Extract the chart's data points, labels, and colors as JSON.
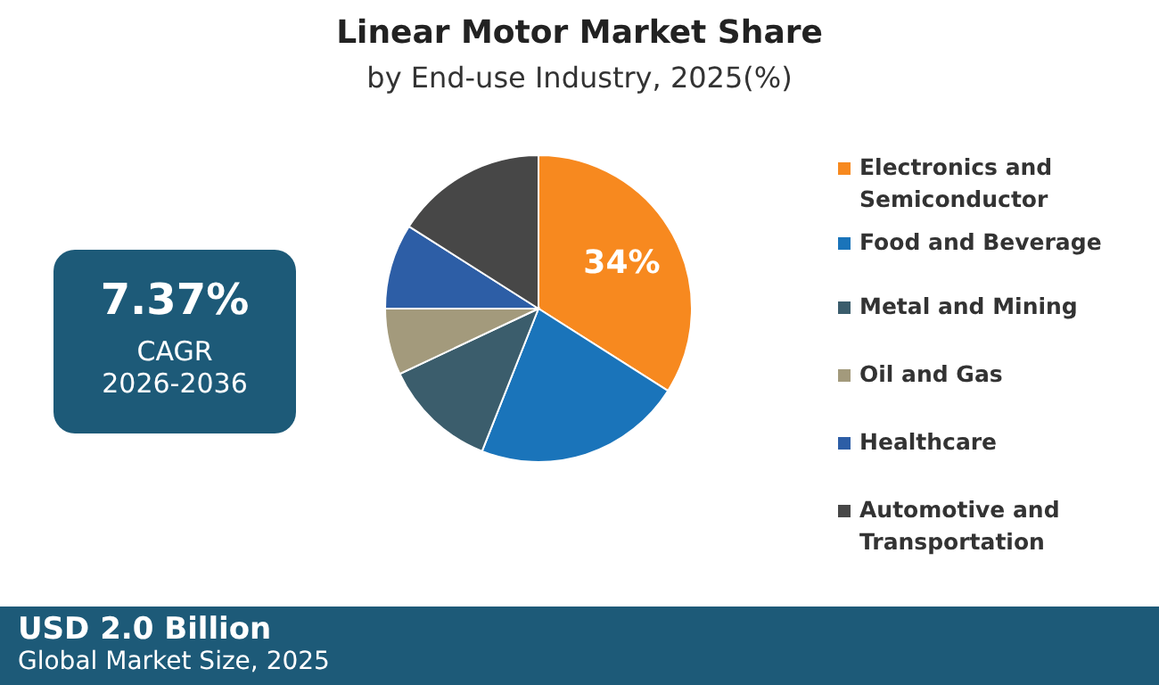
{
  "chart_data": {
    "type": "pie",
    "title": "Linear Motor Market  Share",
    "subtitle": "by End-use Industry, 2025(%)",
    "categories": [
      "Electronics and Semiconductor",
      "Food and Beverage",
      "Metal and Mining",
      "Oil and Gas",
      "Healthcare",
      "Automotive and Transportation"
    ],
    "values": [
      34,
      22,
      12,
      7,
      9,
      16
    ],
    "colors": [
      "#f7891f",
      "#1a74ba",
      "#3b5d6c",
      "#a39a7c",
      "#2d5ea6",
      "#474747"
    ],
    "value_labels": [
      "34%",
      null,
      null,
      null,
      null,
      null
    ],
    "legend": "right",
    "annotations": [
      "7.37%",
      "CAGR",
      "2026-2036",
      "USD 2.0 Billion",
      "Global Market Size, 2025"
    ]
  }
}
